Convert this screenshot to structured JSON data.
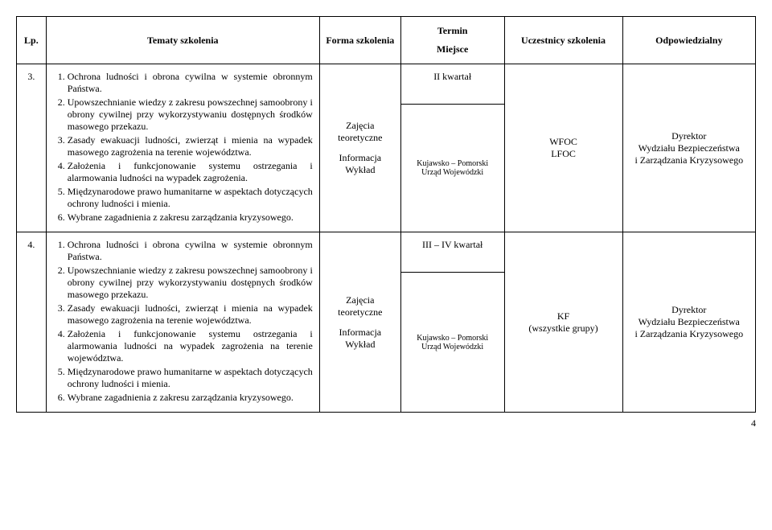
{
  "headers": {
    "lp": "Lp.",
    "tematy": "Tematy szkolenia",
    "forma": "Forma szkolenia",
    "termin": "Termin",
    "miejsce": "Miejsce",
    "uczestnicy": "Uczestnicy szkolenia",
    "odpowiedzialny": "Odpowiedzialny"
  },
  "rows": [
    {
      "lp": "3.",
      "topics": [
        "Ochrona ludności i obrona cywilna w systemie obronnym Państwa.",
        "Upowszechnianie wiedzy z zakresu powszechnej samoobrony i obrony cywilnej przy wykorzystywaniu dostępnych środków masowego przekazu.",
        "Zasady ewakuacji ludności, zwierząt i mienia na wypadek masowego zagrożenia na terenie województwa.",
        "Założenia i funkcjonowanie systemu ostrzegania i alarmowania ludności  na wypadek  zagrożenia.",
        "Międzynarodowe prawo humanitarne w aspektach dotyczących ochrony ludności i mienia.",
        "Wybrane zagadnienia z zakresu zarządzania kryzysowego."
      ],
      "forma1": "Zajęcia teoretyczne",
      "forma2": "Informacja Wykład",
      "termin": "II kwartał",
      "miejsce1": "Kujawsko – Pomorski",
      "miejsce2": "Urząd Wojewódzki",
      "uczest1": "WFOC",
      "uczest2": "LFOC",
      "odp1": "Dyrektor",
      "odp2": "Wydziału Bezpieczeństwa",
      "odp3": "i Zarządzania Kryzysowego"
    },
    {
      "lp": "4.",
      "topics": [
        "Ochrona ludności i obrona cywilna w systemie obronnym Państwa.",
        "Upowszechnianie wiedzy z zakresu powszechnej samoobrony i obrony cywilnej przy wykorzystywaniu dostępnych środków masowego przekazu.",
        "Zasady ewakuacji ludności, zwierząt i mienia na wypadek masowego zagrożenia na terenie województwa.",
        "Założenia i funkcjonowanie systemu ostrzegania i alarmowania ludności  na wypadek  zagrożenia na terenie województwa.",
        "Międzynarodowe prawo humanitarne w aspektach dotyczących ochrony ludności i mienia.",
        "Wybrane zagadnienia z zakresu zarządzania kryzysowego."
      ],
      "forma1": "Zajęcia teoretyczne",
      "forma2": "Informacja Wykład",
      "termin": "III – IV kwartał",
      "miejsce1": "Kujawsko – Pomorski",
      "miejsce2": "Urząd Wojewódzki",
      "uczest1": "KF",
      "uczest2": "(wszystkie grupy)",
      "odp1": "Dyrektor",
      "odp2": "Wydziału Bezpieczeństwa",
      "odp3": "i Zarządzania Kryzysowego"
    }
  ],
  "pagenum": "4",
  "colwidths": {
    "lp": "4%",
    "tematy": "37%",
    "forma": "11%",
    "termin": "14%",
    "uczest": "16%",
    "odp": "18%"
  }
}
